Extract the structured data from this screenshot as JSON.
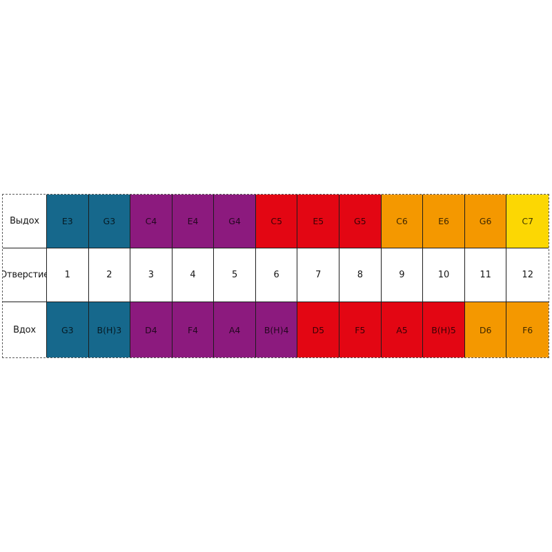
{
  "table": {
    "title": "harmonica-note-layout",
    "colors": {
      "teal": "#16688c",
      "purple": "#8c1a7e",
      "red": "#e30613",
      "orange": "#f49800",
      "yellow": "#fcd703",
      "white": "#ffffff"
    },
    "rows": [
      {
        "key": "exhale",
        "label": "Выдох",
        "cells": [
          {
            "text": "E3",
            "color": "teal"
          },
          {
            "text": "G3",
            "color": "teal"
          },
          {
            "text": "C4",
            "color": "purple"
          },
          {
            "text": "E4",
            "color": "purple"
          },
          {
            "text": "G4",
            "color": "purple"
          },
          {
            "text": "C5",
            "color": "red"
          },
          {
            "text": "E5",
            "color": "red"
          },
          {
            "text": "G5",
            "color": "red"
          },
          {
            "text": "C6",
            "color": "orange"
          },
          {
            "text": "E6",
            "color": "orange"
          },
          {
            "text": "G6",
            "color": "orange"
          },
          {
            "text": "C7",
            "color": "yellow"
          }
        ]
      },
      {
        "key": "hole",
        "label": "Отверстие",
        "cells": [
          {
            "text": "1",
            "color": "white"
          },
          {
            "text": "2",
            "color": "white"
          },
          {
            "text": "3",
            "color": "white"
          },
          {
            "text": "4",
            "color": "white"
          },
          {
            "text": "5",
            "color": "white"
          },
          {
            "text": "6",
            "color": "white"
          },
          {
            "text": "7",
            "color": "white"
          },
          {
            "text": "8",
            "color": "white"
          },
          {
            "text": "9",
            "color": "white"
          },
          {
            "text": "10",
            "color": "white"
          },
          {
            "text": "11",
            "color": "white"
          },
          {
            "text": "12",
            "color": "white"
          }
        ]
      },
      {
        "key": "inhale",
        "label": "Вдох",
        "cells": [
          {
            "text": "G3",
            "color": "teal"
          },
          {
            "text": "B(H)3",
            "color": "teal"
          },
          {
            "text": "D4",
            "color": "purple"
          },
          {
            "text": "F4",
            "color": "purple"
          },
          {
            "text": "A4",
            "color": "purple"
          },
          {
            "text": "B(H)4",
            "color": "purple"
          },
          {
            "text": "D5",
            "color": "red"
          },
          {
            "text": "F5",
            "color": "red"
          },
          {
            "text": "A5",
            "color": "red"
          },
          {
            "text": "B(H)5",
            "color": "red"
          },
          {
            "text": "D6",
            "color": "orange"
          },
          {
            "text": "F6",
            "color": "orange"
          }
        ]
      }
    ]
  }
}
